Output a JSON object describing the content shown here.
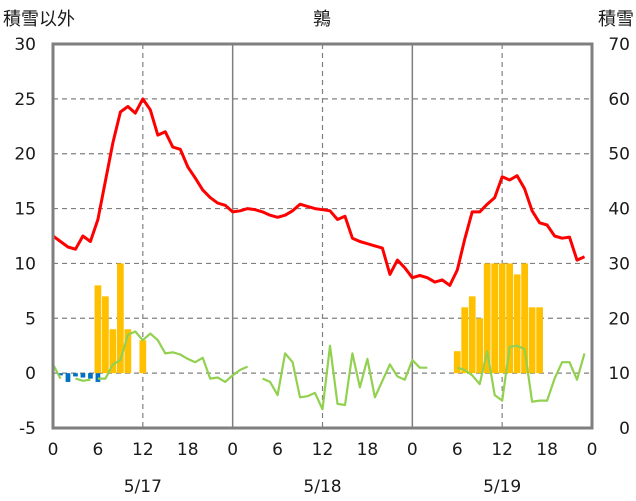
{
  "chart_data": {
    "type": "line",
    "title": "鶉",
    "left_axis": {
      "label": "積雪以外",
      "range": [
        -5,
        30
      ],
      "ticks": [
        -5,
        0,
        5,
        10,
        15,
        20,
        25,
        30
      ]
    },
    "right_axis": {
      "label": "積雪",
      "range": [
        0,
        70
      ],
      "ticks": [
        0,
        10,
        20,
        30,
        40,
        50,
        60,
        70
      ]
    },
    "x": {
      "range_hours": [
        0,
        72
      ],
      "tick_hours": [
        0,
        6,
        12,
        18,
        24,
        30,
        36,
        42,
        48,
        54,
        60,
        66,
        72
      ],
      "tick_labels": [
        "0",
        "6",
        "12",
        "18",
        "0",
        "6",
        "12",
        "18",
        "0",
        "6",
        "12",
        "18",
        "0"
      ],
      "dates": [
        {
          "label": "5/17",
          "hour": 12
        },
        {
          "label": "5/18",
          "hour": 36
        },
        {
          "label": "5/19",
          "hour": 60
        }
      ]
    },
    "grid": {
      "horizontal_dashed": true,
      "vertical_dashed_hours": [
        12,
        36,
        60
      ],
      "vertical_solid_hours": [
        24,
        48
      ]
    },
    "colors": {
      "temperature": "#ff0000",
      "wind": "#92d050",
      "precipitation": "#ffc000",
      "negative": "#0070c0"
    },
    "series": [
      {
        "role": "temperature",
        "axis": "left",
        "hours": [
          0,
          1,
          2,
          3,
          4,
          5,
          6,
          7,
          8,
          9,
          10,
          11,
          12,
          13,
          14,
          15,
          16,
          17,
          18,
          19,
          20,
          21,
          22,
          23,
          24,
          25,
          26,
          27,
          28,
          29,
          30,
          31,
          32,
          33,
          34,
          35,
          36,
          37,
          38,
          39,
          40,
          41,
          42,
          43,
          44,
          45,
          46,
          47,
          48,
          49,
          50,
          51,
          52,
          53,
          54,
          55,
          56,
          57,
          58,
          59,
          60,
          61,
          62,
          63,
          64,
          65,
          66,
          67,
          68,
          69,
          70,
          71
        ],
        "values": [
          12.5,
          12.0,
          11.5,
          11.3,
          12.5,
          12.0,
          14.0,
          17.5,
          21.0,
          23.8,
          24.3,
          23.7,
          25.0,
          24.0,
          21.7,
          22.0,
          20.6,
          20.4,
          18.8,
          17.8,
          16.7,
          16.0,
          15.5,
          15.3,
          14.7,
          14.8,
          15.0,
          14.9,
          14.7,
          14.4,
          14.2,
          14.4,
          14.8,
          15.4,
          15.2,
          15.0,
          14.9,
          14.8,
          14.0,
          14.3,
          12.3,
          12.0,
          11.8,
          11.6,
          11.4,
          9.0,
          10.3,
          9.6,
          8.7,
          8.9,
          8.7,
          8.3,
          8.5,
          8.0,
          9.4,
          12.2,
          14.7,
          14.7,
          15.4,
          16.0,
          17.9,
          17.6,
          18.0,
          16.8,
          14.8,
          13.7,
          13.5,
          12.5,
          12.3,
          12.4,
          10.3,
          10.6
        ]
      },
      {
        "role": "wind",
        "axis": "left",
        "segments": [
          {
            "hours": [
              0,
              1
            ],
            "values": [
              0.8,
              -0.5
            ]
          },
          {
            "hours": [
              3,
              4,
              5
            ],
            "values": [
              -0.5,
              -0.7,
              -0.6
            ]
          },
          {
            "hours": [
              6,
              7,
              8,
              9,
              10,
              11,
              12,
              13,
              14,
              15,
              16,
              17,
              18,
              19,
              20,
              21,
              22,
              23,
              24,
              25,
              26
            ],
            "values": [
              -0.5,
              -0.5,
              0.8,
              1.2,
              3.5,
              3.8,
              3.0,
              3.6,
              3.0,
              1.8,
              1.9,
              1.7,
              1.3,
              1.0,
              1.4,
              -0.5,
              -0.4,
              -0.8,
              -0.2,
              0.3,
              0.6
            ]
          },
          {
            "hours": [
              28,
              29,
              30,
              31,
              32,
              33,
              34,
              35,
              36,
              37,
              38,
              39,
              40,
              41,
              42,
              43,
              44,
              45,
              46,
              47,
              48,
              49,
              50
            ],
            "values": [
              -0.5,
              -0.8,
              -2.0,
              1.8,
              1.0,
              -2.2,
              -2.1,
              -1.8,
              -3.3,
              2.5,
              -2.8,
              -2.9,
              1.8,
              -1.3,
              1.3,
              -2.2,
              -0.7,
              0.8,
              -0.3,
              -0.6,
              1.2,
              0.5,
              0.5
            ]
          },
          {
            "hours": [
              54,
              55,
              56,
              57,
              58,
              59,
              60,
              61,
              62,
              63,
              64,
              65,
              66,
              67,
              68,
              69,
              70,
              71
            ],
            "values": [
              0.5,
              0.3,
              -0.2,
              -1.0,
              2.0,
              -2.0,
              -2.5,
              2.4,
              2.5,
              2.2,
              -2.6,
              -2.5,
              -2.5,
              -0.5,
              1.0,
              1.0,
              -0.6,
              1.8
            ]
          }
        ]
      },
      {
        "role": "precipitation",
        "axis": "left",
        "hours": [
          6,
          7,
          8,
          9,
          10,
          12,
          54,
          55,
          56,
          57,
          58,
          59,
          60,
          61,
          62,
          63,
          64,
          65
        ],
        "values": [
          8,
          7,
          4,
          10,
          4,
          3,
          2,
          6,
          7,
          5,
          10,
          10,
          10,
          10,
          9,
          10,
          6,
          6
        ]
      },
      {
        "role": "negative",
        "axis": "left",
        "hours": [
          1,
          2,
          3,
          4,
          5,
          6
        ],
        "values": [
          -0.2,
          -0.8,
          -0.3,
          -0.4,
          -0.5,
          -0.8
        ]
      }
    ]
  }
}
